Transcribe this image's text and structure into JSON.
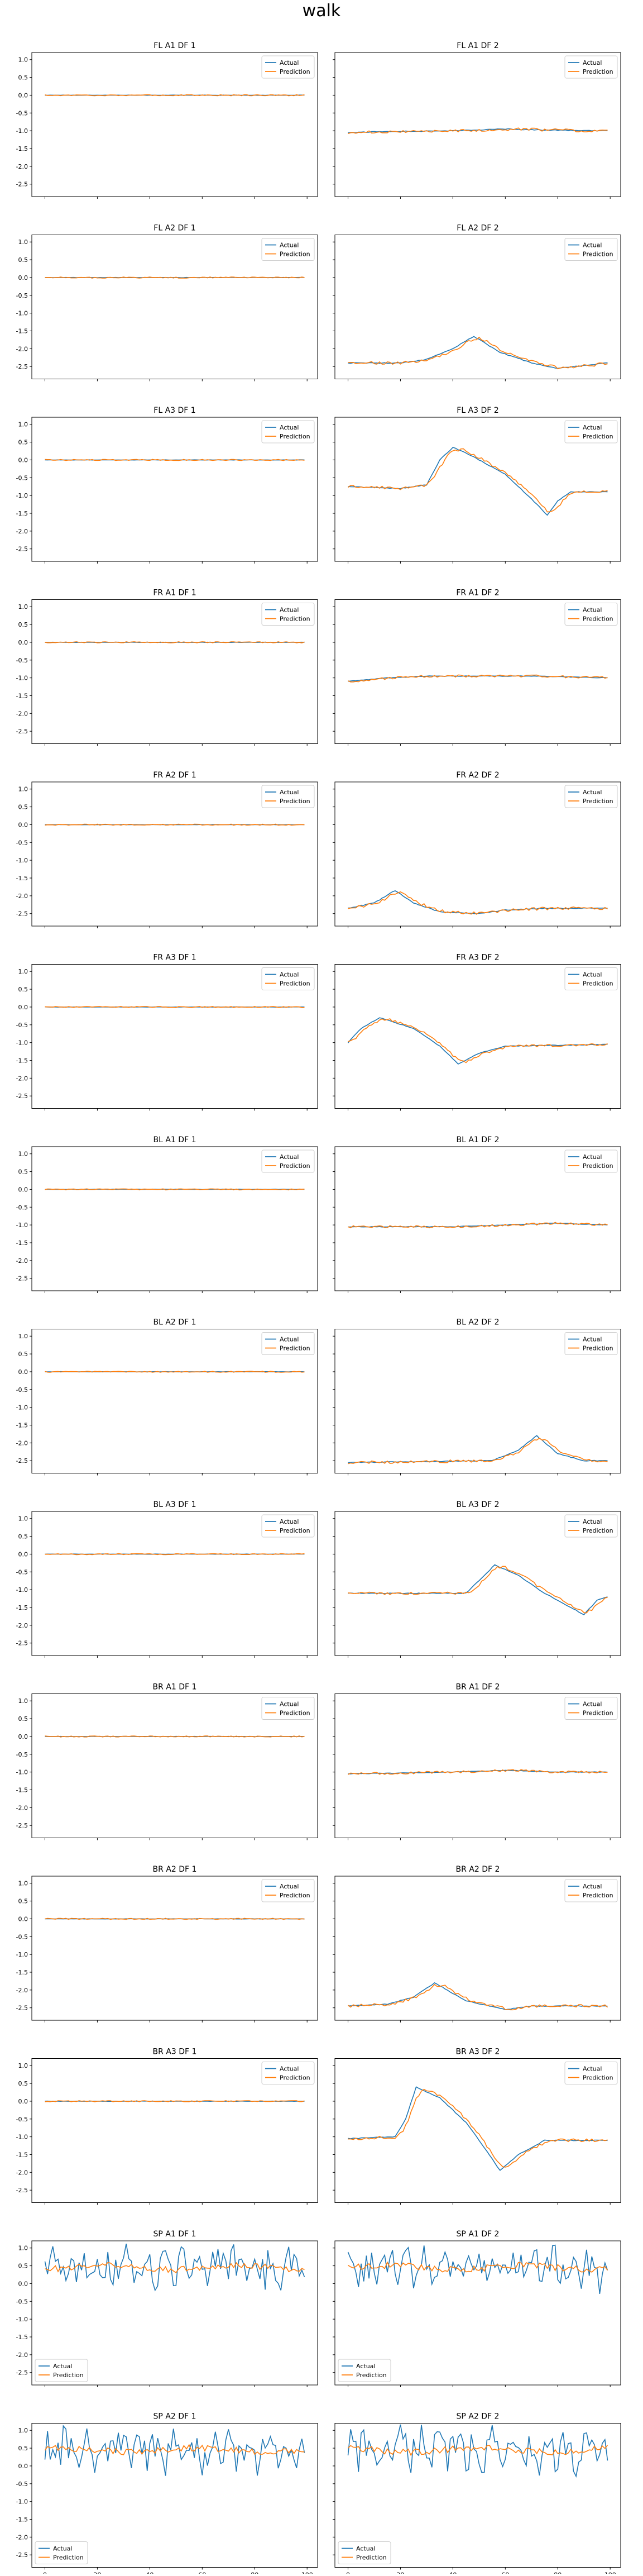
{
  "figure": {
    "suptitle": "walk",
    "colors": {
      "actual": "#1f77b4",
      "prediction": "#ff7f0e",
      "axes": "#000000"
    },
    "legend": {
      "labels": [
        "Actual",
        "Prediction"
      ]
    },
    "shared_yticks": [
      "1.0",
      "0.5",
      "0.0",
      "-0.5",
      "-1.0",
      "-1.5",
      "-2.0",
      "-2.5"
    ],
    "shared_xticks": [
      "0",
      "20",
      "40",
      "60",
      "80",
      "100"
    ],
    "ylim": [
      -2.85,
      1.2
    ],
    "xlim": [
      -5,
      104
    ]
  },
  "chart_data": [
    {
      "title": "FL A1 DF 1",
      "type": "line",
      "legend": "upper right",
      "key": [
        {
          "x": 0,
          "y": 0.0
        },
        {
          "x": 99,
          "y": 0.0
        }
      ],
      "noise": 0.02
    },
    {
      "title": "FL A1 DF 2",
      "type": "line",
      "legend": "upper right",
      "key": [
        {
          "x": 0,
          "y": -1.05
        },
        {
          "x": 15,
          "y": -1.02
        },
        {
          "x": 40,
          "y": -1.0
        },
        {
          "x": 60,
          "y": -0.95
        },
        {
          "x": 75,
          "y": -0.98
        },
        {
          "x": 99,
          "y": -1.0
        }
      ],
      "noise": 0.05
    },
    {
      "title": "FL A2 DF 1",
      "type": "line",
      "legend": "upper right",
      "key": [
        {
          "x": 0,
          "y": 0.0
        },
        {
          "x": 99,
          "y": 0.0
        }
      ],
      "noise": 0.02
    },
    {
      "title": "FL A2 DF 2",
      "type": "line",
      "legend": "upper right",
      "key": [
        {
          "x": 0,
          "y": -2.4
        },
        {
          "x": 20,
          "y": -2.4
        },
        {
          "x": 30,
          "y": -2.3
        },
        {
          "x": 40,
          "y": -2.0
        },
        {
          "x": 48,
          "y": -1.65
        },
        {
          "x": 58,
          "y": -2.1
        },
        {
          "x": 70,
          "y": -2.4
        },
        {
          "x": 80,
          "y": -2.55
        },
        {
          "x": 99,
          "y": -2.4
        }
      ],
      "noise": 0.05
    },
    {
      "title": "FL A3 DF 1",
      "type": "line",
      "legend": "upper right",
      "key": [
        {
          "x": 0,
          "y": 0.0
        },
        {
          "x": 99,
          "y": 0.0
        }
      ],
      "noise": 0.02
    },
    {
      "title": "FL A3 DF 2",
      "type": "line",
      "legend": "upper right",
      "key": [
        {
          "x": 0,
          "y": -0.75
        },
        {
          "x": 20,
          "y": -0.8
        },
        {
          "x": 30,
          "y": -0.7
        },
        {
          "x": 35,
          "y": 0.0
        },
        {
          "x": 40,
          "y": 0.35
        },
        {
          "x": 45,
          "y": 0.2
        },
        {
          "x": 60,
          "y": -0.4
        },
        {
          "x": 70,
          "y": -1.1
        },
        {
          "x": 76,
          "y": -1.55
        },
        {
          "x": 80,
          "y": -1.15
        },
        {
          "x": 85,
          "y": -0.9
        },
        {
          "x": 99,
          "y": -0.9
        }
      ],
      "noise": 0.05
    },
    {
      "title": "FR A1 DF 1",
      "type": "line",
      "legend": "upper right",
      "key": [
        {
          "x": 0,
          "y": 0.0
        },
        {
          "x": 99,
          "y": 0.0
        }
      ],
      "noise": 0.02
    },
    {
      "title": "FR A1 DF 2",
      "type": "line",
      "legend": "upper right",
      "key": [
        {
          "x": 0,
          "y": -1.1
        },
        {
          "x": 15,
          "y": -1.0
        },
        {
          "x": 30,
          "y": -0.95
        },
        {
          "x": 50,
          "y": -0.95
        },
        {
          "x": 70,
          "y": -0.95
        },
        {
          "x": 99,
          "y": -1.0
        }
      ],
      "noise": 0.04
    },
    {
      "title": "FR A2 DF 1",
      "type": "line",
      "legend": "upper right",
      "key": [
        {
          "x": 0,
          "y": 0.0
        },
        {
          "x": 99,
          "y": 0.0
        }
      ],
      "noise": 0.02
    },
    {
      "title": "FR A2 DF 2",
      "type": "line",
      "legend": "upper right",
      "key": [
        {
          "x": 0,
          "y": -2.35
        },
        {
          "x": 10,
          "y": -2.2
        },
        {
          "x": 18,
          "y": -1.85
        },
        {
          "x": 25,
          "y": -2.2
        },
        {
          "x": 35,
          "y": -2.45
        },
        {
          "x": 50,
          "y": -2.5
        },
        {
          "x": 60,
          "y": -2.4
        },
        {
          "x": 75,
          "y": -2.35
        },
        {
          "x": 99,
          "y": -2.35
        }
      ],
      "noise": 0.05
    },
    {
      "title": "FR A3 DF 1",
      "type": "line",
      "legend": "upper right",
      "key": [
        {
          "x": 0,
          "y": 0.0
        },
        {
          "x": 99,
          "y": 0.0
        }
      ],
      "noise": 0.02
    },
    {
      "title": "FR A3 DF 2",
      "type": "line",
      "legend": "upper right",
      "key": [
        {
          "x": 0,
          "y": -1.0
        },
        {
          "x": 5,
          "y": -0.6
        },
        {
          "x": 12,
          "y": -0.3
        },
        {
          "x": 25,
          "y": -0.6
        },
        {
          "x": 35,
          "y": -1.1
        },
        {
          "x": 42,
          "y": -1.6
        },
        {
          "x": 50,
          "y": -1.3
        },
        {
          "x": 60,
          "y": -1.1
        },
        {
          "x": 99,
          "y": -1.05
        }
      ],
      "noise": 0.04
    },
    {
      "title": "BL A1 DF 1",
      "type": "line",
      "legend": "upper right",
      "key": [
        {
          "x": 0,
          "y": 0.0
        },
        {
          "x": 99,
          "y": 0.0
        }
      ],
      "noise": 0.02
    },
    {
      "title": "BL A1 DF 2",
      "type": "line",
      "legend": "upper right",
      "key": [
        {
          "x": 0,
          "y": -1.05
        },
        {
          "x": 40,
          "y": -1.05
        },
        {
          "x": 60,
          "y": -1.0
        },
        {
          "x": 80,
          "y": -0.95
        },
        {
          "x": 99,
          "y": -1.0
        }
      ],
      "noise": 0.04
    },
    {
      "title": "BL A2 DF 1",
      "type": "line",
      "legend": "upper right",
      "key": [
        {
          "x": 0,
          "y": 0.0
        },
        {
          "x": 99,
          "y": 0.0
        }
      ],
      "noise": 0.02
    },
    {
      "title": "BL A2 DF 2",
      "type": "line",
      "legend": "upper right",
      "key": [
        {
          "x": 0,
          "y": -2.55
        },
        {
          "x": 55,
          "y": -2.5
        },
        {
          "x": 65,
          "y": -2.2
        },
        {
          "x": 72,
          "y": -1.8
        },
        {
          "x": 80,
          "y": -2.3
        },
        {
          "x": 90,
          "y": -2.5
        },
        {
          "x": 99,
          "y": -2.5
        }
      ],
      "noise": 0.05
    },
    {
      "title": "BL A3 DF 1",
      "type": "line",
      "legend": "upper right",
      "key": [
        {
          "x": 0,
          "y": 0.0
        },
        {
          "x": 99,
          "y": 0.0
        }
      ],
      "noise": 0.02
    },
    {
      "title": "BL A3 DF 2",
      "type": "line",
      "legend": "upper right",
      "key": [
        {
          "x": 0,
          "y": -1.1
        },
        {
          "x": 45,
          "y": -1.1
        },
        {
          "x": 52,
          "y": -0.6
        },
        {
          "x": 56,
          "y": -0.3
        },
        {
          "x": 65,
          "y": -0.6
        },
        {
          "x": 75,
          "y": -1.1
        },
        {
          "x": 85,
          "y": -1.5
        },
        {
          "x": 90,
          "y": -1.7
        },
        {
          "x": 95,
          "y": -1.3
        },
        {
          "x": 99,
          "y": -1.2
        }
      ],
      "noise": 0.05
    },
    {
      "title": "BR A1 DF 1",
      "type": "line",
      "legend": "upper right",
      "key": [
        {
          "x": 0,
          "y": 0.0
        },
        {
          "x": 99,
          "y": 0.0
        }
      ],
      "noise": 0.02
    },
    {
      "title": "BR A1 DF 2",
      "type": "line",
      "legend": "upper right",
      "key": [
        {
          "x": 0,
          "y": -1.05
        },
        {
          "x": 40,
          "y": -1.0
        },
        {
          "x": 60,
          "y": -0.95
        },
        {
          "x": 80,
          "y": -1.0
        },
        {
          "x": 99,
          "y": -1.0
        }
      ],
      "noise": 0.04
    },
    {
      "title": "BR A2 DF 1",
      "type": "line",
      "legend": "upper right",
      "key": [
        {
          "x": 0,
          "y": 0.0
        },
        {
          "x": 99,
          "y": 0.0
        }
      ],
      "noise": 0.02
    },
    {
      "title": "BR A2 DF 2",
      "type": "line",
      "legend": "upper right",
      "key": [
        {
          "x": 0,
          "y": -2.45
        },
        {
          "x": 15,
          "y": -2.4
        },
        {
          "x": 25,
          "y": -2.2
        },
        {
          "x": 33,
          "y": -1.8
        },
        {
          "x": 45,
          "y": -2.3
        },
        {
          "x": 60,
          "y": -2.55
        },
        {
          "x": 70,
          "y": -2.45
        },
        {
          "x": 99,
          "y": -2.45
        }
      ],
      "noise": 0.05
    },
    {
      "title": "BR A3 DF 1",
      "type": "line",
      "legend": "upper right",
      "key": [
        {
          "x": 0,
          "y": 0.0
        },
        {
          "x": 99,
          "y": 0.0
        }
      ],
      "noise": 0.02
    },
    {
      "title": "BR A3 DF 2",
      "type": "line",
      "legend": "upper right",
      "key": [
        {
          "x": 0,
          "y": -1.05
        },
        {
          "x": 18,
          "y": -1.0
        },
        {
          "x": 22,
          "y": -0.5
        },
        {
          "x": 26,
          "y": 0.4
        },
        {
          "x": 35,
          "y": 0.1
        },
        {
          "x": 45,
          "y": -0.6
        },
        {
          "x": 52,
          "y": -1.3
        },
        {
          "x": 58,
          "y": -1.95
        },
        {
          "x": 65,
          "y": -1.5
        },
        {
          "x": 75,
          "y": -1.1
        },
        {
          "x": 99,
          "y": -1.1
        }
      ],
      "noise": 0.05
    },
    {
      "title": "SP A1 DF 1",
      "type": "line",
      "legend": "lower left",
      "key": [
        {
          "x": 0,
          "y": 0.5
        },
        {
          "x": 99,
          "y": 0.5
        }
      ],
      "noise": 0.02
    },
    {
      "title": "SP A1 DF 2",
      "type": "line",
      "legend": "lower left",
      "key": [
        {
          "x": 0,
          "y": 0.5
        },
        {
          "x": 99,
          "y": 0.5
        }
      ],
      "noise": 0.02
    },
    {
      "title": "SP A2 DF 1",
      "type": "line",
      "legend": "lower left",
      "key": [
        {
          "x": 0,
          "y": 0.5
        },
        {
          "x": 99,
          "y": 0.5
        }
      ],
      "noise": 0.02
    },
    {
      "title": "SP A2 DF 2",
      "type": "line",
      "legend": "lower left",
      "key": [
        {
          "x": 0,
          "y": 0.5
        },
        {
          "x": 99,
          "y": 0.5
        }
      ],
      "noise": 0.02
    }
  ]
}
